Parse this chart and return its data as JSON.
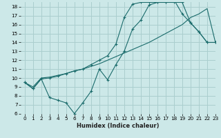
{
  "xlabel": "Humidex (Indice chaleur)",
  "bg_color": "#cce8e8",
  "grid_color": "#aacece",
  "line_color": "#1a6b6b",
  "line1_x": [
    0,
    1,
    2,
    3,
    4,
    5,
    6,
    7,
    8,
    9,
    10,
    11,
    12,
    13,
    14,
    15,
    16,
    17,
    18,
    19,
    20,
    21,
    22,
    23
  ],
  "line1_y": [
    9.5,
    9.0,
    10.0,
    10.1,
    10.3,
    10.5,
    10.8,
    11.0,
    11.3,
    11.6,
    12.0,
    12.4,
    12.8,
    13.2,
    13.6,
    14.0,
    14.5,
    15.0,
    15.5,
    16.0,
    16.8,
    17.2,
    17.8,
    14.0
  ],
  "line2_x": [
    0,
    1,
    2,
    3,
    4,
    5,
    6,
    7,
    8,
    9,
    10,
    11,
    12,
    13,
    14,
    15,
    16,
    17,
    18,
    19,
    20,
    21,
    22,
    23
  ],
  "line2_y": [
    9.5,
    8.8,
    9.9,
    7.8,
    7.5,
    7.2,
    6.0,
    7.2,
    8.5,
    11.0,
    9.8,
    11.5,
    13.0,
    15.5,
    16.5,
    18.2,
    18.5,
    18.5,
    18.5,
    18.5,
    16.2,
    15.2,
    14.0,
    14.0
  ],
  "line3_x": [
    0,
    1,
    2,
    3,
    4,
    5,
    6,
    7,
    8,
    9,
    10,
    11,
    12,
    13,
    14,
    15,
    16,
    17,
    18,
    19,
    20,
    21,
    22,
    23
  ],
  "line3_y": [
    9.5,
    8.8,
    9.9,
    10.0,
    10.2,
    10.5,
    10.8,
    11.0,
    11.5,
    12.0,
    12.5,
    13.8,
    16.8,
    18.3,
    18.5,
    18.5,
    18.5,
    18.5,
    18.8,
    17.2,
    16.2,
    15.2,
    14.0,
    14.0
  ],
  "xlim": [
    -0.5,
    23
  ],
  "ylim": [
    6,
    18.5
  ],
  "yticks": [
    6,
    7,
    8,
    9,
    10,
    11,
    12,
    13,
    14,
    15,
    16,
    17,
    18
  ],
  "xticks": [
    0,
    1,
    2,
    3,
    4,
    5,
    6,
    7,
    8,
    9,
    10,
    11,
    12,
    13,
    14,
    15,
    16,
    17,
    18,
    19,
    20,
    21,
    22,
    23
  ],
  "xlabel_fontsize": 6.0,
  "tick_fontsize": 5.2
}
